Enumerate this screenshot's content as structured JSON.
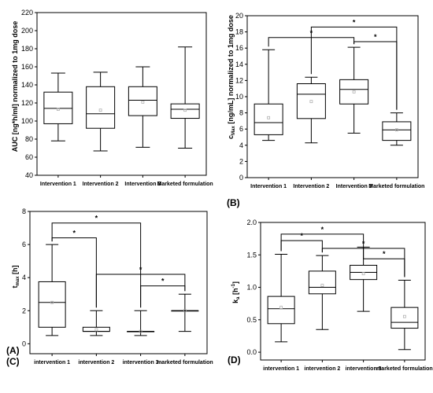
{
  "chart_data": [
    {
      "type": "box",
      "panel_label": "(A)",
      "ylabel": "AUC [ng*h/ml] normalized to 1mg dose",
      "ylim": [
        40,
        220
      ],
      "yticks": [
        40,
        60,
        80,
        100,
        120,
        140,
        160,
        180,
        200,
        220
      ],
      "categories": [
        "Intervention 1",
        "Intervention 2",
        "Intervention 3",
        "Marketed formulation"
      ],
      "boxes": [
        {
          "min": 78,
          "q1": 97,
          "median": 114,
          "q3": 132,
          "max": 153,
          "mean": 113
        },
        {
          "min": 67,
          "q1": 92,
          "median": 108,
          "q3": 138,
          "max": 154,
          "mean": 112
        },
        {
          "min": 71,
          "q1": 106,
          "median": 123,
          "q3": 138,
          "max": 160,
          "mean": 121
        },
        {
          "min": 70,
          "q1": 103,
          "median": 113,
          "q3": 119,
          "max": 182,
          "mean": 112
        }
      ],
      "significance": []
    },
    {
      "type": "box",
      "panel_label": "(B)",
      "ylabel": "cMax [ng/mL] normalized to 1mg dose",
      "ylabel_main": "c",
      "ylabel_sub": "Max",
      "ylabel_rest": " [ng/mL] normalized to 1mg dose",
      "ylim": [
        0,
        20
      ],
      "yticks": [
        0,
        2,
        4,
        6,
        8,
        10,
        12,
        14,
        16,
        18,
        20
      ],
      "categories": [
        "Intervention 1",
        "Intervention 2",
        "Intervention 3",
        "Marketed formulation"
      ],
      "boxes": [
        {
          "min": 4.6,
          "q1": 5.3,
          "median": 6.8,
          "q3": 9.1,
          "max": 15.8,
          "mean": 7.4
        },
        {
          "min": 4.3,
          "q1": 7.3,
          "median": 10.3,
          "q3": 11.6,
          "max": 12.4,
          "mean": 9.4
        },
        {
          "min": 5.5,
          "q1": 9.1,
          "median": 10.9,
          "q3": 12.1,
          "max": 16.1,
          "mean": 10.6
        },
        {
          "min": 4.0,
          "q1": 4.6,
          "median": 5.9,
          "q3": 6.9,
          "max": 8.0,
          "mean": 5.9
        }
      ],
      "significance": [
        {
          "from": 0,
          "to": 2,
          "y": 17.3,
          "label": "*"
        },
        {
          "from": 1,
          "to": 3,
          "y": 18.6,
          "label": "*"
        },
        {
          "from": 2,
          "to": 3,
          "y": 16.8,
          "label": "*"
        }
      ]
    },
    {
      "type": "box",
      "panel_label": "(C)",
      "ylabel": "tmax [h]",
      "ylabel_main": "t",
      "ylabel_sub": "max",
      "ylabel_rest": " [h]",
      "ylim": [
        -0.6,
        8
      ],
      "yticks": [
        0,
        2,
        4,
        6,
        8
      ],
      "categories": [
        "intervention 1",
        "intervention 2",
        "intervention 3",
        "marketed formulation"
      ],
      "boxes": [
        {
          "min": 0.5,
          "q1": 1.0,
          "median": 2.5,
          "q3": 3.75,
          "max": 6.0,
          "mean": 2.5
        },
        {
          "min": 0.5,
          "q1": 0.75,
          "median": 0.75,
          "q3": 1.0,
          "max": 2.0,
          "mean": 0.85
        },
        {
          "min": 0.5,
          "q1": 0.75,
          "median": 0.75,
          "q3": 0.75,
          "max": 2.0,
          "mean": 0.75
        },
        {
          "min": 0.75,
          "q1": 2.0,
          "median": 2.0,
          "q3": 2.0,
          "max": 3.0,
          "mean": 2.0
        }
      ],
      "significance": [
        {
          "from": 0,
          "to": 2,
          "y": 7.3,
          "label": "*"
        },
        {
          "from": 0,
          "to": 1,
          "y": 6.4,
          "label": "*"
        },
        {
          "from": 1,
          "to": 3,
          "y": 4.2,
          "label": "*"
        },
        {
          "from": 2,
          "to": 3,
          "y": 3.5,
          "label": "*"
        }
      ]
    },
    {
      "type": "box",
      "panel_label": "(D)",
      "ylabel": "ka [h-1]",
      "ylabel_main": "k",
      "ylabel_sub": "a",
      "ylabel_rest": " [h",
      "ylabel_sup": "-1",
      "ylabel_end": "]",
      "ylim": [
        -0.12,
        2.0
      ],
      "yticks": [
        0.0,
        0.5,
        1.0,
        1.5,
        2.0
      ],
      "ytick_labels": [
        "0.0",
        "0.5",
        "1.0",
        "1.5",
        "2.0"
      ],
      "categories": [
        "intervention 1",
        "intervention 2",
        "intervention 3",
        "marketed formulation"
      ],
      "boxes": [
        {
          "min": 0.16,
          "q1": 0.44,
          "median": 0.67,
          "q3": 0.86,
          "max": 1.51,
          "mean": 0.69
        },
        {
          "min": 0.35,
          "q1": 0.9,
          "median": 1.0,
          "q3": 1.25,
          "max": 1.49,
          "mean": 1.03
        },
        {
          "min": 0.63,
          "q1": 1.12,
          "median": 1.23,
          "q3": 1.34,
          "max": 1.62,
          "mean": 1.21
        },
        {
          "min": 0.04,
          "q1": 0.37,
          "median": 0.46,
          "q3": 0.69,
          "max": 1.11,
          "mean": 0.55
        }
      ],
      "significance": [
        {
          "from": 0,
          "to": 2,
          "y": 1.82,
          "label": "*"
        },
        {
          "from": 0,
          "to": 1,
          "y": 1.72,
          "label": "*"
        },
        {
          "from": 1,
          "to": 3,
          "y": 1.6,
          "label": "*"
        },
        {
          "from": 2,
          "to": 3,
          "y": 1.44,
          "label": "*"
        }
      ]
    }
  ]
}
